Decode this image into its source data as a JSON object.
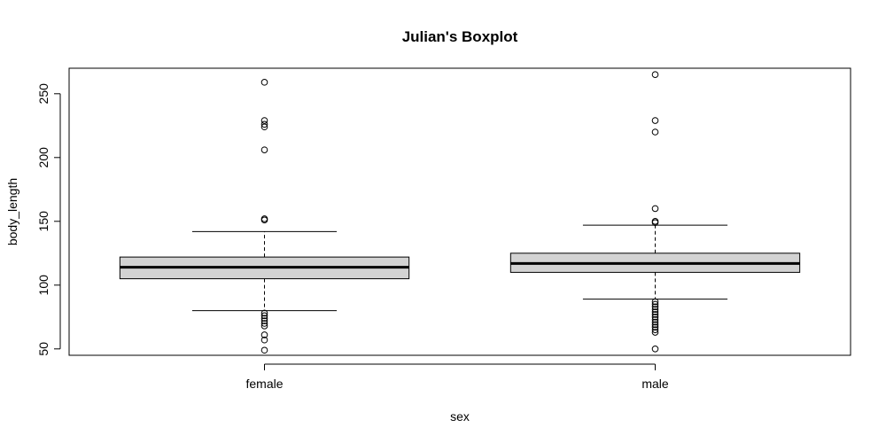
{
  "chart_data": {
    "type": "boxplot",
    "title": "Julian's Boxplot",
    "xlabel": "sex",
    "ylabel": "body_length",
    "ylim": [
      45,
      270
    ],
    "yticks": [
      50,
      100,
      150,
      200,
      250
    ],
    "grid": false,
    "box_fill": "#d3d3d3",
    "categories": [
      "female",
      "male"
    ],
    "boxes": [
      {
        "category": "female",
        "whisker_low": 80,
        "q1": 105,
        "median": 114,
        "q3": 122,
        "whisker_high": 142,
        "outliers": [
          49,
          57,
          61,
          68,
          70,
          72,
          74,
          76,
          78,
          151,
          152,
          206,
          224,
          226,
          229,
          259
        ]
      },
      {
        "category": "male",
        "whisker_low": 89,
        "q1": 110,
        "median": 117,
        "q3": 125,
        "whisker_high": 147,
        "outliers": [
          50,
          63,
          65,
          67,
          69,
          71,
          73,
          75,
          77,
          79,
          81,
          83,
          85,
          87,
          149,
          150,
          160,
          220,
          229,
          265
        ]
      }
    ]
  }
}
